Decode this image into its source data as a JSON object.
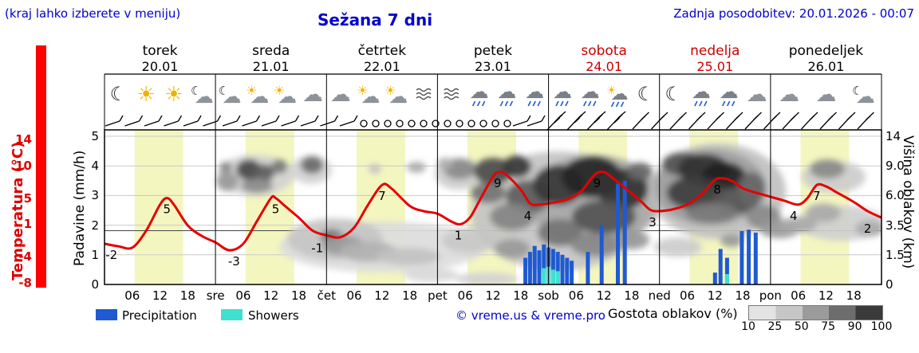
{
  "header": {
    "hint": "(kraj lahko izberete v meniju)",
    "title": "Sežana 7 dni",
    "updated": "Zadnja posodobitev: 20.01.2026 - 00:07"
  },
  "axes": {
    "temp_label": "Temperatura (°C)",
    "temp_ticks": [
      14,
      10,
      5,
      1,
      -4,
      -8
    ],
    "precip_label": "Padavine (mm/h)",
    "precip_ticks": [
      5,
      4,
      3,
      2,
      1,
      0
    ],
    "cloud_label": "Višina oblakov (km)",
    "cloud_ticks": [
      {
        "label": "14",
        "level": 5
      },
      {
        "label": "9.0",
        "level": 4
      },
      {
        "label": "6.0",
        "level": 3
      },
      {
        "label": "3.5",
        "level": 2
      },
      {
        "label": "1.5",
        "level": 1
      },
      {
        "label": "0",
        "level": 0
      }
    ],
    "hour_ticks": [
      "06",
      "12",
      "18"
    ],
    "day_abbrevs": [
      "sre",
      "čet",
      "pet",
      "sob",
      "ned",
      "pon"
    ]
  },
  "legend": {
    "precipitation": "Precipitation",
    "showers": "Showers",
    "credit": "© vreme.us & vreme.pro",
    "cloud_density_label": "Gostota oblakov (%)",
    "cloud_density_ticks": [
      "10",
      "25",
      "50",
      "75",
      "90",
      "100"
    ]
  },
  "chart_data": {
    "type": "meteogram",
    "x_unit": "hours from 20.01 00:00, 7 days, 24h per day",
    "days": [
      {
        "name": "torek",
        "date": "20.01",
        "weekend": false,
        "icons": [
          "moon",
          "sun",
          "sun",
          "cloud-moon"
        ]
      },
      {
        "name": "sreda",
        "date": "21.01",
        "weekend": false,
        "icons": [
          "cloud-moon",
          "sun-cloud",
          "sun-cloud",
          "cloud"
        ]
      },
      {
        "name": "četrtek",
        "date": "22.01",
        "weekend": false,
        "icons": [
          "cloud",
          "sun-cloud",
          "sun-cloud",
          "fog"
        ]
      },
      {
        "name": "petek",
        "date": "23.01",
        "weekend": false,
        "icons": [
          "fog",
          "rain",
          "rain",
          "rain"
        ]
      },
      {
        "name": "sobota",
        "date": "24.01",
        "weekend": true,
        "icons": [
          "rain",
          "rain",
          "sun-rain",
          "moon"
        ]
      },
      {
        "name": "nedelja",
        "date": "25.01",
        "weekend": true,
        "icons": [
          "moon",
          "rain",
          "rain",
          "cloud"
        ]
      },
      {
        "name": "ponedeljek",
        "date": "26.01",
        "weekend": false,
        "icons": [
          "cloud",
          "cloud",
          "cloud-moon"
        ]
      }
    ],
    "daylight": {
      "start_hour": 6.5,
      "end_hour": 17.0,
      "color": "#f4f6c0"
    },
    "temperature": {
      "unit": "°C",
      "color": "#e60000",
      "freeze_line": 0,
      "points": [
        [
          0,
          -2
        ],
        [
          3,
          -2.4
        ],
        [
          6,
          -2.6
        ],
        [
          9,
          0
        ],
        [
          12,
          4
        ],
        [
          13.5,
          5
        ],
        [
          15,
          4
        ],
        [
          18,
          0.8
        ],
        [
          21,
          -0.8
        ],
        [
          24,
          -1.8
        ],
        [
          27,
          -3
        ],
        [
          30,
          -2
        ],
        [
          33,
          1.5
        ],
        [
          36,
          5
        ],
        [
          37,
          5
        ],
        [
          39,
          3.8
        ],
        [
          42,
          2
        ],
        [
          45,
          0
        ],
        [
          48,
          -0.7
        ],
        [
          51,
          -1
        ],
        [
          54,
          0.5
        ],
        [
          57,
          4
        ],
        [
          60,
          7
        ],
        [
          62,
          6.5
        ],
        [
          66,
          3.8
        ],
        [
          69,
          3
        ],
        [
          72,
          2.6
        ],
        [
          75,
          1.4
        ],
        [
          77,
          1
        ],
        [
          79,
          2
        ],
        [
          81,
          4.5
        ],
        [
          84,
          8.3
        ],
        [
          85.5,
          9
        ],
        [
          87,
          8.5
        ],
        [
          90,
          6.3
        ],
        [
          92,
          4.2
        ],
        [
          94,
          4
        ],
        [
          97,
          4.3
        ],
        [
          100,
          4.8
        ],
        [
          103,
          6
        ],
        [
          106,
          8.6
        ],
        [
          108,
          9
        ],
        [
          110,
          8
        ],
        [
          113,
          6.3
        ],
        [
          116,
          4.5
        ],
        [
          118,
          3.2
        ],
        [
          120,
          3
        ],
        [
          123,
          3.3
        ],
        [
          126,
          4
        ],
        [
          129,
          5.5
        ],
        [
          132,
          7.8
        ],
        [
          134,
          8
        ],
        [
          136,
          7.5
        ],
        [
          138,
          6.5
        ],
        [
          141,
          5.8
        ],
        [
          144,
          5.2
        ],
        [
          147,
          4.6
        ],
        [
          150,
          4
        ],
        [
          152,
          5
        ],
        [
          154,
          7
        ],
        [
          156,
          6.8
        ],
        [
          158,
          6
        ],
        [
          162,
          4.4
        ],
        [
          165,
          3
        ],
        [
          168,
          2
        ]
      ],
      "labels": [
        {
          "v": -2,
          "h": 1.5
        },
        {
          "v": 5,
          "h": 13.5
        },
        {
          "v": -3,
          "h": 28
        },
        {
          "v": 5,
          "h": 37
        },
        {
          "v": -1,
          "h": 46
        },
        {
          "v": 7,
          "h": 60
        },
        {
          "v": 1,
          "h": 76.5
        },
        {
          "v": 9,
          "h": 85
        },
        {
          "v": 4,
          "h": 91.5
        },
        {
          "v": 9,
          "h": 106.5
        },
        {
          "v": 3,
          "h": 118.5
        },
        {
          "v": 8,
          "h": 132.5
        },
        {
          "v": 4,
          "h": 149
        },
        {
          "v": 7,
          "h": 154
        },
        {
          "v": 2,
          "h": 165
        }
      ]
    },
    "precipitation": {
      "unit": "mm/h",
      "color": "#1f5ad1",
      "bars": [
        [
          91,
          0.9
        ],
        [
          92,
          1.1
        ],
        [
          93,
          1.3
        ],
        [
          94,
          1.15
        ],
        [
          95,
          1.35
        ],
        [
          96,
          1.25
        ],
        [
          97,
          1.2
        ],
        [
          98,
          1.1
        ],
        [
          99,
          1.0
        ],
        [
          100,
          0.9
        ],
        [
          101,
          0.8
        ],
        [
          104.5,
          1.1
        ],
        [
          107.5,
          2.0
        ],
        [
          111,
          3.4
        ],
        [
          112.5,
          3.5
        ],
        [
          132,
          0.4
        ],
        [
          133.2,
          1.2
        ],
        [
          134.6,
          0.9
        ],
        [
          137.8,
          1.8
        ],
        [
          139.3,
          1.85
        ],
        [
          140.8,
          1.75
        ]
      ]
    },
    "showers": {
      "color": "#3fe0cf",
      "bars": [
        [
          95,
          0.55
        ],
        [
          96,
          0.6
        ],
        [
          97,
          0.5
        ],
        [
          98,
          0.45
        ],
        [
          134.6,
          0.35
        ]
      ]
    },
    "clouds": [
      [
        320,
        220,
        48,
        26,
        "#d2d2d2"
      ],
      [
        390,
        213,
        26,
        18,
        "#d2d2d2"
      ],
      [
        480,
        310,
        130,
        32,
        "#dcdcdc"
      ],
      [
        420,
        300,
        60,
        26,
        "#c6c6c6"
      ],
      [
        575,
        218,
        30,
        20,
        "#cccccc"
      ],
      [
        588,
        302,
        34,
        16,
        "#c9c9c9"
      ],
      [
        700,
        265,
        110,
        75,
        "#c4c4c4"
      ],
      [
        745,
        250,
        85,
        55,
        "#a8a8a8"
      ],
      [
        900,
        240,
        85,
        60,
        "#c0c0c0"
      ],
      [
        890,
        235,
        70,
        48,
        "#a0a0a0"
      ],
      [
        1045,
        222,
        40,
        20,
        "#cccccc"
      ],
      [
        1055,
        280,
        55,
        22,
        "#cfcfcf"
      ],
      [
        850,
        310,
        30,
        12,
        "#cccccc"
      ],
      [
        540,
        345,
        34,
        9,
        "#d8d8d8"
      ],
      [
        610,
        350,
        40,
        8,
        "#d3d3d3"
      ],
      [
        285,
        228,
        14,
        12,
        "#9a9a9a"
      ],
      [
        312,
        213,
        16,
        13,
        "#484848"
      ],
      [
        331,
        217,
        13,
        11,
        "#5e5e5e"
      ],
      [
        322,
        233,
        20,
        9,
        "#8c8c8c"
      ],
      [
        350,
        209,
        10,
        9,
        "#787878"
      ],
      [
        391,
        207,
        14,
        11,
        "#6a6a6a"
      ],
      [
        283,
        210,
        8,
        7,
        "#8a8a8a"
      ],
      [
        416,
        297,
        14,
        9,
        "#6e6e6e"
      ],
      [
        430,
        308,
        26,
        13,
        "#9a9a9a"
      ],
      [
        462,
        316,
        36,
        13,
        "#b2b2b2"
      ],
      [
        512,
        322,
        40,
        11,
        "#c2c2c2"
      ],
      [
        522,
        210,
        12,
        7,
        "#ababab"
      ],
      [
        576,
        212,
        20,
        13,
        "#8a8a8a"
      ],
      [
        618,
        215,
        24,
        17,
        "#4a4a4a"
      ],
      [
        648,
        209,
        18,
        14,
        "#383838"
      ],
      [
        612,
        242,
        22,
        13,
        "#747474"
      ],
      [
        662,
        247,
        28,
        21,
        "#5e5e5e"
      ],
      [
        642,
        272,
        28,
        17,
        "#848484"
      ],
      [
        700,
        232,
        32,
        25,
        "#363636"
      ],
      [
        742,
        222,
        38,
        26,
        "#242424"
      ],
      [
        780,
        237,
        32,
        26,
        "#323232"
      ],
      [
        757,
        272,
        40,
        21,
        "#545454"
      ],
      [
        702,
        292,
        28,
        17,
        "#747474"
      ],
      [
        747,
        307,
        32,
        15,
        "#888888"
      ],
      [
        792,
        301,
        22,
        12,
        "#989898"
      ],
      [
        642,
        312,
        22,
        12,
        "#9a9a9a"
      ],
      [
        802,
        215,
        16,
        11,
        "#686868"
      ],
      [
        856,
        206,
        26,
        15,
        "#545454"
      ],
      [
        882,
        212,
        32,
        19,
        "#323232"
      ],
      [
        907,
        222,
        28,
        19,
        "#222222"
      ],
      [
        872,
        242,
        36,
        21,
        "#3c3c3c"
      ],
      [
        922,
        252,
        28,
        17,
        "#565656"
      ],
      [
        892,
        267,
        32,
        13,
        "#787878"
      ],
      [
        942,
        237,
        18,
        21,
        "#666666"
      ],
      [
        957,
        272,
        22,
        15,
        "#8a8a8a"
      ],
      [
        977,
        287,
        26,
        12,
        "#9a9a9a"
      ],
      [
        1002,
        282,
        22,
        10,
        "#aaaaaa"
      ],
      [
        1037,
        212,
        22,
        12,
        "#8a8a8a"
      ],
      [
        1032,
        267,
        22,
        12,
        "#aaaaaa"
      ],
      [
        1090,
        287,
        18,
        10,
        "#aaaaaa"
      ],
      [
        917,
        302,
        14,
        8,
        "#989898"
      ],
      [
        558,
        205,
        10,
        7,
        "#b0b0b0"
      ],
      [
        470,
        212,
        8,
        6,
        "#c0c0c0"
      ]
    ],
    "wind": {
      "segments": [
        {
          "start": 141,
          "step": 24.5,
          "count": 13,
          "kind": "light"
        },
        {
          "start": 456,
          "step": 15,
          "count": 13,
          "kind": "calm"
        },
        {
          "start": 652,
          "step": 18,
          "count": 2,
          "kind": "light"
        },
        {
          "start": 694,
          "step": 25,
          "count": 4,
          "kind": "strong"
        },
        {
          "start": 800,
          "step": 23.5,
          "count": 13,
          "kind": "moderate"
        }
      ]
    }
  }
}
